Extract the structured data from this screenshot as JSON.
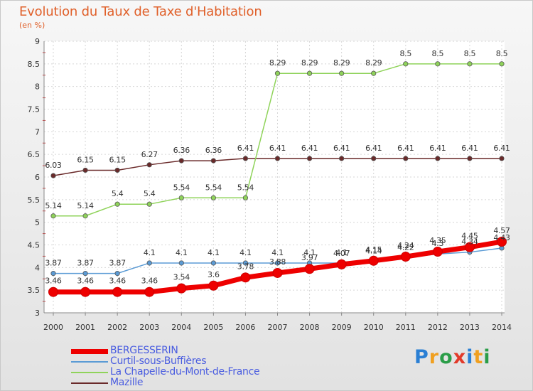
{
  "title": "Evolution du Taux de Taxe d'Habitation",
  "subtitle": "(en %)",
  "logo": {
    "letters": [
      "P",
      "r",
      "o",
      "x",
      "i",
      "t",
      "i"
    ],
    "colors": [
      "#2a7fd4",
      "#f0a020",
      "#2a9d48",
      "#e23a2a",
      "#2a7fd4",
      "#f0a020",
      "#2a9d48"
    ]
  },
  "chart_data": {
    "type": "line",
    "x": [
      2000,
      2001,
      2002,
      2003,
      2004,
      2005,
      2006,
      2007,
      2008,
      2009,
      2010,
      2011,
      2012,
      2013,
      2014
    ],
    "ylim": [
      3,
      9
    ],
    "yticks": [
      3,
      3.5,
      4,
      4.5,
      5,
      5.5,
      6,
      6.5,
      7,
      7.5,
      8,
      8.5,
      9
    ],
    "grid": true,
    "legend_position": "bottom",
    "series": [
      {
        "name": "BERGESSERIN",
        "color": "#ee0000",
        "values": [
          3.46,
          3.46,
          3.46,
          3.46,
          3.54,
          3.6,
          3.78,
          3.88,
          3.97,
          4.07,
          4.15,
          4.24,
          4.35,
          4.45,
          4.57
        ],
        "labels": [
          "3.46",
          "3.46",
          "3.46",
          "3.46",
          "3.54",
          "3.6",
          "3.78",
          "3.88",
          "3.97",
          "4.07",
          "4.15",
          "4.24",
          "4.35",
          "4.45",
          "4.57"
        ]
      },
      {
        "name": "Curtil-sous-Buffières",
        "color": "#5b9bd5",
        "values": [
          3.87,
          3.87,
          3.87,
          4.1,
          4.1,
          4.1,
          4.1,
          4.1,
          4.1,
          4.1,
          4.14,
          4.22,
          4.3,
          4.34,
          4.43
        ],
        "labels": [
          "3.87",
          "3.87",
          "3.87",
          "4.1",
          "4.1",
          "4.1",
          "4.1",
          "4.1",
          "4.1",
          "4.1",
          "4.14",
          "4.22",
          "4.3",
          "4.34",
          "4.43"
        ]
      },
      {
        "name": "La Chapelle-du-Mont-de-France",
        "color": "#8fd35a",
        "values": [
          5.14,
          5.14,
          5.4,
          5.4,
          5.54,
          5.54,
          5.54,
          8.29,
          8.29,
          8.29,
          8.29,
          8.5,
          8.5,
          8.5,
          8.5
        ],
        "labels": [
          "5.14",
          "5.14",
          "5.4",
          "5.4",
          "5.54",
          "5.54",
          "5.54",
          "8.29",
          "8.29",
          "8.29",
          "8.29",
          "8.5",
          "8.5",
          "8.5",
          "8.5"
        ]
      },
      {
        "name": "Mazille",
        "color": "#6a2a2a",
        "values": [
          6.03,
          6.15,
          6.15,
          6.27,
          6.36,
          6.36,
          6.41,
          6.41,
          6.41,
          6.41,
          6.41,
          6.41,
          6.41,
          6.41,
          6.41
        ],
        "labels": [
          "6.03",
          "6.15",
          "6.15",
          "6.27",
          "6.36",
          "6.36",
          "6.41",
          "6.41",
          "6.41",
          "6.41",
          "6.41",
          "6.41",
          "6.41",
          "6.41",
          "6.41"
        ]
      }
    ]
  }
}
